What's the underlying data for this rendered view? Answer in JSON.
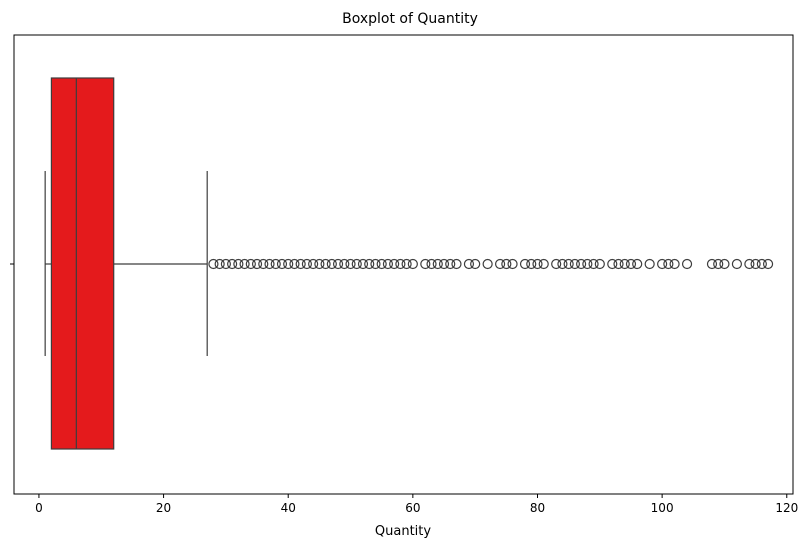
{
  "chart_data": {
    "type": "boxplot",
    "title": "Boxplot of Quantity",
    "xlabel": "Quantity",
    "ylabel": "",
    "xlim": [
      -4,
      121
    ],
    "x_ticks": [
      0,
      20,
      40,
      60,
      80,
      100,
      120
    ],
    "orientation": "horizontal",
    "box": {
      "min": 1,
      "q1": 2,
      "median": 6,
      "q3": 12,
      "whisker_high": 27
    },
    "outliers": [
      28,
      29,
      30,
      31,
      32,
      33,
      34,
      35,
      36,
      37,
      38,
      39,
      40,
      41,
      42,
      43,
      44,
      45,
      46,
      47,
      48,
      49,
      50,
      51,
      52,
      53,
      54,
      55,
      56,
      57,
      58,
      59,
      60,
      62,
      63,
      64,
      65,
      66,
      67,
      69,
      70,
      72,
      74,
      75,
      76,
      78,
      79,
      80,
      81,
      83,
      84,
      85,
      86,
      87,
      88,
      89,
      90,
      92,
      93,
      94,
      95,
      96,
      98,
      100,
      101,
      102,
      104,
      108,
      109,
      110,
      112,
      114,
      115,
      116,
      117
    ],
    "colors": {
      "box_fill": "#e41a1c",
      "line": "#3d3d3d",
      "outlier_edge": "#3d3d3d"
    },
    "grid": false,
    "legend": "none"
  }
}
